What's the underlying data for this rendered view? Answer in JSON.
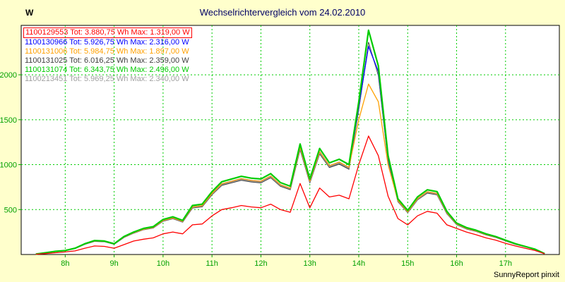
{
  "page": {
    "title": "Wechselrichtervergleich vom 24.02.2010",
    "title_color": "#000066",
    "footer": "SunnyReport pinxit",
    "background": "#FFFFCC",
    "plot_background": "#FFFFFF"
  },
  "legend": {
    "entries": [
      {
        "id": "1100129553",
        "label": "1100129553 Tot: 3.880,75 Wh Max: 1.319,00 W",
        "color": "#FF0000",
        "highlighted": true
      },
      {
        "id": "1100130966",
        "label": "1100130966 Tot: 5.926,75 Wh Max: 2.316,00 W",
        "color": "#0000FF",
        "highlighted": false
      },
      {
        "id": "1100131006",
        "label": "1100131006 Tot: 5.984,75 Wh Max: 1.897,00 W",
        "color": "#FFA000",
        "highlighted": false
      },
      {
        "id": "1100131025",
        "label": "1100131025 Tot: 6.016,25 Wh Max: 2.359,00 W",
        "color": "#404040",
        "highlighted": false
      },
      {
        "id": "1100131074",
        "label": "1100131074 Tot: 6.343,75 Wh Max: 2.496,00 W",
        "color": "#00CC00",
        "highlighted": false
      },
      {
        "id": "1100213451",
        "label": "1100213451 Tot: 5.969,25 Wh Max: 2.340,00 W",
        "color": "#A0A0A0",
        "highlighted": false
      }
    ]
  },
  "chart_data": {
    "type": "line",
    "title": "Wechselrichtervergleich vom 24.02.2010",
    "xlabel": "",
    "ylabel": "W",
    "x_unit": "hour_of_day",
    "grid": true,
    "grid_color": "#00CC00",
    "tick_label_color": "#00A000",
    "legend_position": "top-left-inside",
    "xlim": [
      7.1,
      18.1
    ],
    "ylim": [
      0,
      2550
    ],
    "x_ticks": [
      "8h",
      "9h",
      "10h",
      "11h",
      "12h",
      "13h",
      "14h",
      "15h",
      "16h",
      "17h"
    ],
    "x_tick_hours": [
      8,
      9,
      10,
      11,
      12,
      13,
      14,
      15,
      16,
      17
    ],
    "y_ticks": [
      500,
      1000,
      1500,
      2000
    ],
    "x": [
      7.4,
      7.6,
      7.8,
      8.0,
      8.2,
      8.4,
      8.6,
      8.8,
      9.0,
      9.2,
      9.4,
      9.6,
      9.8,
      10.0,
      10.2,
      10.4,
      10.6,
      10.8,
      11.0,
      11.2,
      11.4,
      11.6,
      11.8,
      12.0,
      12.2,
      12.4,
      12.6,
      12.8,
      13.0,
      13.2,
      13.4,
      13.6,
      13.8,
      14.0,
      14.2,
      14.4,
      14.6,
      14.8,
      15.0,
      15.2,
      15.4,
      15.6,
      15.8,
      16.0,
      16.2,
      16.4,
      16.6,
      16.8,
      17.0,
      17.2,
      17.4,
      17.6,
      17.8
    ],
    "series": [
      {
        "name": "1100129553",
        "color": "#FF0000",
        "max_w": 1319,
        "values": [
          3,
          10,
          20,
          28,
          40,
          70,
          95,
          90,
          70,
          110,
          150,
          170,
          185,
          230,
          250,
          230,
          330,
          340,
          430,
          500,
          520,
          545,
          530,
          520,
          560,
          500,
          470,
          790,
          520,
          740,
          640,
          660,
          620,
          1000,
          1319,
          1100,
          650,
          400,
          330,
          430,
          480,
          460,
          330,
          290,
          250,
          220,
          185,
          160,
          125,
          95,
          70,
          45,
          8
        ]
      },
      {
        "name": "1100130966",
        "color": "#0000FF",
        "max_w": 2316,
        "values": [
          5,
          19,
          34,
          44,
          68,
          116,
          150,
          146,
          116,
          194,
          243,
          281,
          301,
          378,
          407,
          369,
          529,
          543,
          679,
          786,
          815,
          844,
          825,
          815,
          873,
          776,
          737,
          1193,
          815,
          1145,
          989,
          1028,
          970,
          1650,
          2316,
          2037,
          1067,
          601,
          475,
          621,
          698,
          679,
          466,
          340,
          291,
          262,
          223,
          194,
          155,
          116,
          87,
          58,
          10
        ]
      },
      {
        "name": "1100131006",
        "color": "#FFA000",
        "max_w": 1897,
        "values": [
          5,
          19,
          34,
          44,
          68,
          116,
          150,
          146,
          116,
          194,
          243,
          281,
          301,
          378,
          407,
          369,
          529,
          543,
          679,
          786,
          815,
          844,
          825,
          815,
          873,
          776,
          737,
          1193,
          815,
          1145,
          989,
          1028,
          970,
          1500,
          1897,
          1700,
          1000,
          601,
          475,
          621,
          698,
          679,
          466,
          340,
          291,
          262,
          223,
          194,
          155,
          116,
          87,
          58,
          10
        ]
      },
      {
        "name": "1100131025",
        "color": "#404040",
        "max_w": 2359,
        "values": [
          5,
          19,
          33,
          43,
          67,
          114,
          147,
          143,
          114,
          190,
          238,
          276,
          295,
          371,
          399,
          361,
          518,
          532,
          665,
          770,
          798,
          827,
          808,
          798,
          855,
          760,
          722,
          1169,
          798,
          1121,
          969,
          1007,
          950,
          1615,
          2359,
          1995,
          1045,
          589,
          466,
          608,
          684,
          665,
          456,
          333,
          285,
          257,
          219,
          190,
          152,
          114,
          86,
          57,
          10
        ]
      },
      {
        "name": "1100131074",
        "color": "#00CC00",
        "max_w": 2496,
        "values": [
          5,
          20,
          35,
          45,
          70,
          120,
          155,
          150,
          120,
          200,
          250,
          290,
          310,
          390,
          420,
          380,
          545,
          560,
          700,
          810,
          840,
          870,
          850,
          840,
          900,
          800,
          760,
          1230,
          840,
          1180,
          1020,
          1060,
          1000,
          1700,
          2496,
          2100,
          1100,
          620,
          490,
          640,
          720,
          700,
          480,
          350,
          300,
          270,
          230,
          200,
          160,
          120,
          90,
          60,
          10
        ]
      },
      {
        "name": "1100213451",
        "color": "#A0A0A0",
        "max_w": 2340,
        "values": [
          5,
          19,
          34,
          43,
          67,
          115,
          149,
          144,
          115,
          192,
          240,
          278,
          298,
          374,
          403,
          365,
          523,
          538,
          672,
          778,
          806,
          835,
          816,
          806,
          864,
          768,
          730,
          1181,
          806,
          1133,
          979,
          1018,
          960,
          1632,
          2340,
          2016,
          1056,
          595,
          470,
          614,
          691,
          672,
          461,
          336,
          288,
          259,
          221,
          192,
          154,
          115,
          86,
          58,
          10
        ]
      }
    ]
  }
}
